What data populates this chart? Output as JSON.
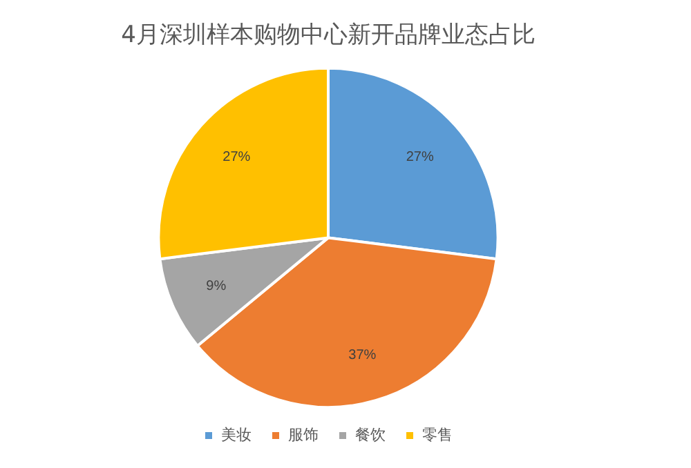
{
  "chart_data": {
    "type": "pie",
    "title": "4月深圳样本购物中心新开品牌业态占比",
    "categories": [
      "美妆",
      "服饰",
      "餐饮",
      "零售"
    ],
    "values": [
      27,
      37,
      9,
      27
    ],
    "colors": [
      "#5b9bd5",
      "#ed7d31",
      "#a5a5a5",
      "#ffc000"
    ],
    "value_labels": [
      "27%",
      "37%",
      "9%",
      "27%"
    ],
    "legend": "bottom"
  }
}
